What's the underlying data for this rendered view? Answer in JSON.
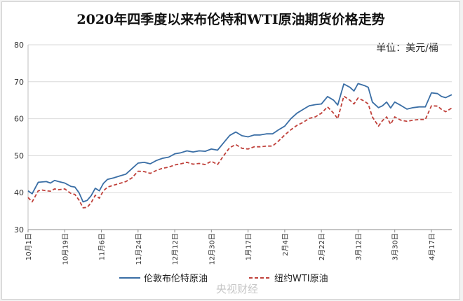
{
  "chart_data": {
    "type": "line",
    "title": "2020年四季度以来布伦特和WTI原油期货价格走势",
    "unit_label": "单位：美元/桶",
    "ylim": [
      30,
      80
    ],
    "yticks": [
      "30",
      "40",
      "50",
      "60",
      "70",
      "80"
    ],
    "xlim": [
      "2020-10-01",
      "2021-04-27"
    ],
    "xticks": [
      {
        "date": "2020-10-01",
        "label": "10月1日"
      },
      {
        "date": "2020-10-19",
        "label": "10月19日"
      },
      {
        "date": "2020-11-06",
        "label": "11月6日"
      },
      {
        "date": "2020-11-24",
        "label": "11月24日"
      },
      {
        "date": "2020-12-12",
        "label": "12月12日"
      },
      {
        "date": "2020-12-30",
        "label": "12月30日"
      },
      {
        "date": "2021-01-17",
        "label": "1月17日"
      },
      {
        "date": "2021-02-04",
        "label": "2月4日"
      },
      {
        "date": "2021-02-22",
        "label": "2月22日"
      },
      {
        "date": "2021-03-12",
        "label": "3月12日"
      },
      {
        "date": "2021-03-30",
        "label": "3月30日"
      },
      {
        "date": "2021-04-17",
        "label": "4月17日"
      }
    ],
    "legend_position": "bottom",
    "colors": {
      "brent": "#3a6ea5",
      "wti": "#c0413b"
    },
    "x": [
      "2020-10-01",
      "2020-10-03",
      "2020-10-06",
      "2020-10-08",
      "2020-10-10",
      "2020-10-12",
      "2020-10-14",
      "2020-10-16",
      "2020-10-19",
      "2020-10-22",
      "2020-10-24",
      "2020-10-26",
      "2020-10-28",
      "2020-10-30",
      "2020-11-01",
      "2020-11-03",
      "2020-11-05",
      "2020-11-07",
      "2020-11-09",
      "2020-11-12",
      "2020-11-15",
      "2020-11-18",
      "2020-11-21",
      "2020-11-24",
      "2020-11-27",
      "2020-11-30",
      "2020-12-03",
      "2020-12-06",
      "2020-12-09",
      "2020-12-12",
      "2020-12-15",
      "2020-12-18",
      "2020-12-21",
      "2020-12-24",
      "2020-12-27",
      "2020-12-30",
      "2021-01-02",
      "2021-01-05",
      "2021-01-08",
      "2021-01-11",
      "2021-01-14",
      "2021-01-17",
      "2021-01-20",
      "2021-01-23",
      "2021-01-26",
      "2021-01-29",
      "2021-02-01",
      "2021-02-04",
      "2021-02-07",
      "2021-02-10",
      "2021-02-13",
      "2021-02-16",
      "2021-02-19",
      "2021-02-22",
      "2021-02-25",
      "2021-02-28",
      "2021-03-02",
      "2021-03-05",
      "2021-03-08",
      "2021-03-10",
      "2021-03-12",
      "2021-03-15",
      "2021-03-17",
      "2021-03-19",
      "2021-03-22",
      "2021-03-24",
      "2021-03-26",
      "2021-03-28",
      "2021-03-30",
      "2021-04-02",
      "2021-04-05",
      "2021-04-08",
      "2021-04-11",
      "2021-04-14",
      "2021-04-17",
      "2021-04-20",
      "2021-04-22",
      "2021-04-24",
      "2021-04-27"
    ],
    "series": [
      {
        "key": "brent",
        "name": "伦敦布伦特原油",
        "style": "solid",
        "values": [
          40.5,
          39.7,
          42.8,
          42.9,
          43.0,
          42.6,
          43.3,
          43.0,
          42.6,
          41.7,
          41.5,
          40.0,
          37.5,
          37.9,
          39.2,
          41.2,
          40.5,
          42.5,
          43.6,
          44.0,
          44.5,
          45.0,
          46.5,
          48.0,
          48.2,
          47.8,
          48.7,
          49.3,
          49.6,
          50.5,
          50.8,
          51.3,
          51.0,
          51.3,
          51.2,
          51.8,
          51.5,
          53.5,
          55.5,
          56.4,
          55.4,
          55.1,
          55.6,
          55.6,
          55.9,
          55.9,
          57.0,
          58.0,
          60.0,
          61.5,
          62.5,
          63.5,
          63.8,
          64.0,
          66.0,
          65.0,
          63.7,
          69.4,
          68.5,
          67.5,
          69.5,
          69.0,
          68.5,
          64.5,
          63.0,
          63.5,
          64.5,
          62.9,
          64.5,
          63.6,
          62.6,
          63.0,
          63.2,
          63.2,
          67.0,
          66.8,
          66.0,
          65.7,
          66.5
        ]
      },
      {
        "key": "wti",
        "name": "纽约WTI原油",
        "style": "dashed",
        "values": [
          38.7,
          37.5,
          40.5,
          40.7,
          40.5,
          40.4,
          41.0,
          40.8,
          41.0,
          39.8,
          39.5,
          38.0,
          35.9,
          36.0,
          37.3,
          39.3,
          38.5,
          40.5,
          41.5,
          42.0,
          42.5,
          43.0,
          44.0,
          45.8,
          45.7,
          45.2,
          46.0,
          46.6,
          46.9,
          47.5,
          47.8,
          48.2,
          47.7,
          47.9,
          47.6,
          48.5,
          47.6,
          50.0,
          52.2,
          53.0,
          52.0,
          51.8,
          52.4,
          52.4,
          52.6,
          52.6,
          54.0,
          55.6,
          57.0,
          58.2,
          59.0,
          60.1,
          60.5,
          61.5,
          63.2,
          61.5,
          60.0,
          66.1,
          65.0,
          64.0,
          65.6,
          64.8,
          64.0,
          60.5,
          58.0,
          59.5,
          60.5,
          58.5,
          60.5,
          59.6,
          59.3,
          59.6,
          59.8,
          59.8,
          63.5,
          63.4,
          62.5,
          61.9,
          62.9
        ]
      }
    ]
  },
  "watermark": "央视财经"
}
